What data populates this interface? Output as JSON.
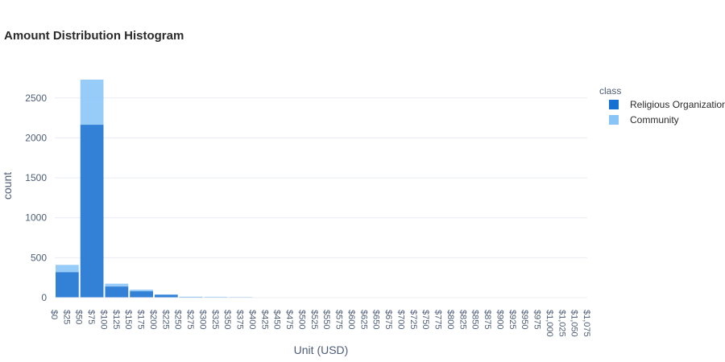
{
  "chart_data": {
    "type": "bar",
    "barmode": "stack",
    "title": "Amount Distribution Histogram",
    "xlabel": "Unit (USD)",
    "ylabel": "count",
    "legend_title": "class",
    "legend_position": "top-right",
    "grid": true,
    "ylim": [
      0,
      2800
    ],
    "yticks": [
      0,
      500,
      1000,
      1500,
      2000,
      2500
    ],
    "xlim": [
      0,
      1075
    ],
    "bin_width": 50,
    "xticks": [
      "$0",
      "$25",
      "$50",
      "$75",
      "$100",
      "$125",
      "$150",
      "$175",
      "$200",
      "$225",
      "$250",
      "$275",
      "$300",
      "$325",
      "$350",
      "$375",
      "$400",
      "$425",
      "$450",
      "$475",
      "$500",
      "$525",
      "$550",
      "$575",
      "$600",
      "$625",
      "$650",
      "$675",
      "$700",
      "$725",
      "$750",
      "$775",
      "$800",
      "$825",
      "$850",
      "$875",
      "$900",
      "$925",
      "$950",
      "$975",
      "$1,000",
      "$1,025",
      "$1,050",
      "$1,075"
    ],
    "bins": [
      0,
      50,
      100,
      150,
      200,
      250,
      300,
      350,
      400,
      450,
      500,
      550,
      600,
      650,
      700,
      750,
      800,
      850,
      900,
      950,
      1000,
      1050
    ],
    "series": [
      {
        "name": "Religious Organizatior",
        "color": "#1670d2",
        "values": [
          320,
          2165,
          140,
          80,
          35,
          10,
          8,
          6,
          3,
          2,
          2,
          1,
          1,
          1,
          1,
          1,
          1,
          1,
          1,
          1,
          1,
          0
        ]
      },
      {
        "name": "Community",
        "color": "#89c4f7",
        "values": [
          90,
          565,
          35,
          20,
          6,
          2,
          3,
          2,
          1,
          1,
          0,
          0,
          1,
          0,
          1,
          0,
          0,
          0,
          0,
          1,
          0,
          0
        ]
      }
    ]
  }
}
